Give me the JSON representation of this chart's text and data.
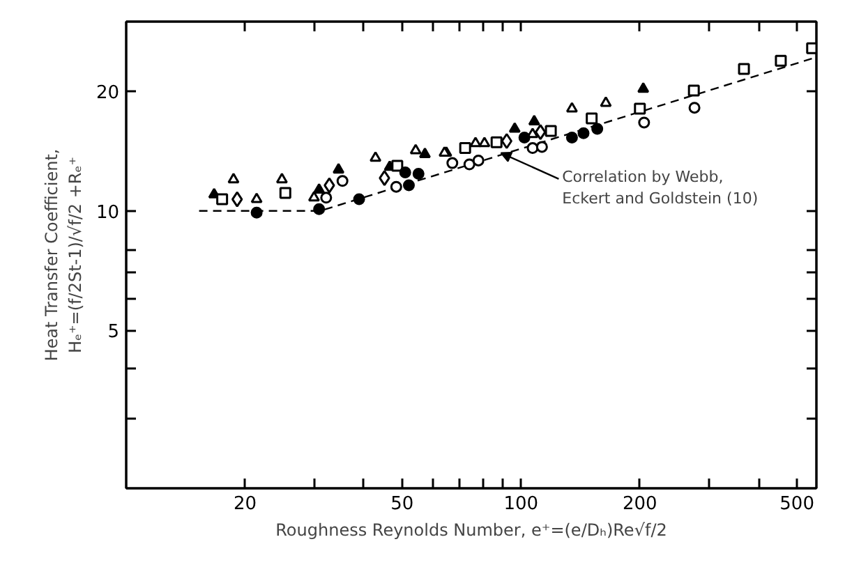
{
  "chart_data": {
    "type": "scatter",
    "log": "xy",
    "grid": false,
    "xlabel": "Roughness Reynolds Number, e⁺=(e/Dₕ)Re√f/2",
    "ylabel": "Heat Transfer Coefficient,\nHₑ⁺=(f/2St-1)/√f/2 +Rₑ⁺",
    "xlim": [
      10,
      560
    ],
    "ylim": [
      2,
      30
    ],
    "xticks": [
      20,
      {
        "value": 30,
        "label": null
      },
      {
        "value": 40,
        "label": null
      },
      50,
      {
        "value": 60,
        "label": null
      },
      {
        "value": 70,
        "label": null
      },
      {
        "value": 80,
        "label": null
      },
      {
        "value": 90,
        "label": null
      },
      100,
      200,
      {
        "value": 300,
        "label": null
      },
      {
        "value": 400,
        "label": null
      },
      500
    ],
    "yticks": [
      {
        "value": 3,
        "label": null
      },
      {
        "value": 4,
        "label": null
      },
      5,
      {
        "value": 6,
        "label": null
      },
      {
        "value": 7,
        "label": null
      },
      {
        "value": 8,
        "label": null
      },
      10,
      20
    ],
    "annotations": [
      {
        "text": "Correlation by Webb,\nEckert and Goldstein (10)",
        "x": 89,
        "y": 14.0
      }
    ],
    "series": [
      {
        "type": "line",
        "line_style": "dashed",
        "marker": "none",
        "color": "#000000",
        "x": [
          15.3,
          31,
          560
        ],
        "values": [
          10,
          10,
          24.4
        ]
      },
      {
        "marker": "triangle",
        "color": "#ffffff",
        "x": [
          18.7,
          24.8,
          42.8,
          54.1,
          64.7,
          76.7,
          107,
          134.6,
          164
        ],
        "values": [
          12.0,
          12.0,
          13.6,
          14.2,
          14.0,
          14.8,
          15.6,
          18.1,
          18.7
        ]
      },
      {
        "marker": "triangle",
        "color": "#000000",
        "x": [
          34.5,
          57.1,
          108,
          204
        ],
        "values": [
          12.7,
          13.9,
          16.8,
          20.3
        ]
      },
      {
        "marker": "triangle",
        "color": "#ffffff",
        "x": [
          21.4,
          29.9,
          64,
          80.8
        ],
        "values": [
          10.7,
          10.8,
          14.0,
          14.8
        ]
      },
      {
        "marker": "triangle",
        "color": "#000000",
        "x": [
          16.7,
          30.8,
          46.5,
          96.4
        ],
        "values": [
          11.0,
          11.3,
          12.9,
          16.1
        ]
      },
      {
        "marker": "square",
        "color": "#ffffff",
        "x": [
          17.5,
          25.3,
          48.6,
          72.2,
          86.7,
          119,
          151,
          200,
          274,
          367,
          455,
          546
        ],
        "values": [
          10.7,
          11.1,
          13.0,
          14.4,
          14.9,
          15.9,
          17.1,
          18.1,
          20.1,
          22.8,
          23.9,
          25.7
        ]
      },
      {
        "marker": "diamond",
        "color": "#ffffff",
        "x": [
          19.1,
          32.7,
          45.1,
          92,
          112
        ],
        "values": [
          10.7,
          11.6,
          12.1,
          15.0,
          15.8
        ]
      },
      {
        "marker": "circle",
        "color": "#ffffff",
        "x": [
          32.1,
          35.3,
          48.3,
          67,
          74,
          78,
          107,
          113,
          205,
          275
        ],
        "values": [
          10.8,
          11.9,
          11.5,
          13.2,
          13.1,
          13.4,
          14.4,
          14.5,
          16.7,
          18.2
        ]
      },
      {
        "marker": "circle",
        "color": "#000000",
        "x": [
          21.4,
          30.8,
          38.9,
          50.9,
          52,
          55,
          102,
          134.6,
          144,
          156
        ],
        "values": [
          9.9,
          10.1,
          10.7,
          12.5,
          11.6,
          12.4,
          15.3,
          15.3,
          15.7,
          16.1
        ]
      }
    ]
  }
}
